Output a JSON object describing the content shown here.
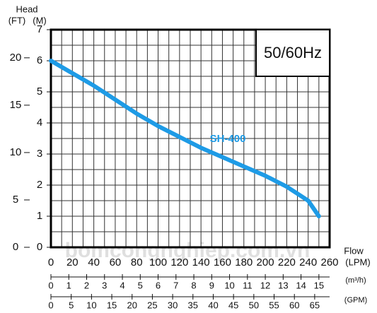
{
  "chart_data": {
    "type": "line",
    "y_label": "Head",
    "y_unit": "(M)",
    "y2_label": "(FT)",
    "x_label": "Flow",
    "x_unit": "(LPM)",
    "annotation": "50/60Hz",
    "watermark": "bomcongnghiep.com.vn",
    "x": [
      0,
      20,
      40,
      60,
      80,
      100,
      120,
      140,
      160,
      180,
      200,
      220,
      240,
      250
    ],
    "series": [
      {
        "name": "SH-400",
        "color": "#1e9be6",
        "values": [
          6.0,
          5.6,
          5.2,
          4.75,
          4.3,
          3.9,
          3.55,
          3.2,
          2.9,
          2.6,
          2.3,
          1.95,
          1.5,
          1.0
        ]
      }
    ],
    "xlim": [
      0,
      260
    ],
    "xticks": [
      0,
      20,
      40,
      60,
      80,
      100,
      120,
      140,
      160,
      180,
      200,
      220,
      240,
      260
    ],
    "ylim": [
      0,
      7
    ],
    "yticks": [
      0,
      1,
      2,
      3,
      4,
      5,
      6,
      7
    ],
    "y2lim": [
      0,
      22.97
    ],
    "y2ticks": [
      0,
      5,
      10,
      15,
      20
    ],
    "secondary_x_axes": [
      {
        "label": "(m³/h)",
        "xlim": [
          0,
          15.6
        ],
        "xticks": [
          0,
          1,
          2,
          3,
          4,
          5,
          6,
          7,
          8,
          9,
          10,
          11,
          12,
          13,
          14,
          15
        ]
      },
      {
        "label": "(GPM)",
        "xlim": [
          0,
          68.68
        ],
        "xticks": [
          0,
          5,
          10,
          15,
          20,
          25,
          30,
          35,
          40,
          45,
          50,
          55,
          60,
          65
        ]
      }
    ],
    "grid": true
  }
}
